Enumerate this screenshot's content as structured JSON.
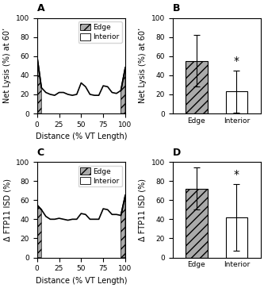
{
  "chart_data": [
    {
      "type": "line",
      "title": "A",
      "x_label": "Distance (% VT Length)",
      "y_label": "Net Lysis (%) at 60’",
      "xlim": [
        0,
        100
      ],
      "ylim": [
        0,
        100
      ],
      "xticks": [
        0,
        25,
        50,
        75,
        100
      ],
      "yticks": [
        0,
        20,
        40,
        60,
        80,
        100
      ],
      "legend": "upper right",
      "x": [
        0,
        5,
        10,
        15,
        20,
        25,
        30,
        35,
        40,
        45,
        50,
        55,
        60,
        65,
        70,
        75,
        80,
        85,
        90,
        95,
        100
      ],
      "series": [
        {
          "name": "Edge",
          "type": "area",
          "color": "#aaaaaa",
          "values": [
            60,
            27,
            null,
            null,
            null,
            null,
            null,
            null,
            null,
            null,
            null,
            null,
            null,
            null,
            null,
            null,
            null,
            null,
            null,
            24,
            48
          ]
        },
        {
          "name": "Interior",
          "type": "area",
          "color": "#ffffff",
          "values": [
            60,
            27,
            22,
            20,
            19,
            22,
            22,
            20,
            19,
            20,
            32,
            28,
            20,
            19,
            19,
            29,
            28,
            22,
            21,
            24,
            48
          ]
        }
      ]
    },
    {
      "type": "bar",
      "title": "B",
      "y_label": "Net Lysis (%) at 60’",
      "categories": [
        "Edge",
        "Interior"
      ],
      "values": [
        55,
        23
      ],
      "errors": [
        27,
        22
      ],
      "colors": [
        "#aaaaaa",
        "#ffffff"
      ],
      "ylim": [
        0,
        100
      ],
      "yticks": [
        0,
        20,
        40,
        60,
        80,
        100
      ],
      "annotations": [
        {
          "text": "*",
          "x": "Interior",
          "y": 49
        }
      ]
    },
    {
      "type": "line",
      "title": "C",
      "x_label": "Distance (% VT Length)",
      "y_label": "Δ FTP11 ISD (%)",
      "xlim": [
        0,
        100
      ],
      "ylim": [
        0,
        100
      ],
      "xticks": [
        0,
        25,
        50,
        75,
        100
      ],
      "yticks": [
        0,
        20,
        40,
        60,
        80,
        100
      ],
      "legend": "upper right",
      "x": [
        0,
        5,
        10,
        15,
        20,
        25,
        30,
        35,
        40,
        45,
        50,
        55,
        60,
        65,
        70,
        75,
        80,
        85,
        90,
        95,
        100
      ],
      "series": [
        {
          "name": "Edge",
          "type": "area",
          "color": "#aaaaaa",
          "values": [
            55,
            50,
            null,
            null,
            null,
            null,
            null,
            null,
            null,
            null,
            null,
            null,
            null,
            null,
            null,
            null,
            null,
            null,
            null,
            44,
            65
          ]
        },
        {
          "name": "Interior",
          "type": "area",
          "color": "#ffffff",
          "values": [
            55,
            50,
            43,
            40,
            40,
            41,
            40,
            39,
            40,
            40,
            46,
            45,
            40,
            40,
            40,
            51,
            50,
            45,
            45,
            44,
            65
          ]
        }
      ]
    },
    {
      "type": "bar",
      "title": "D",
      "y_label": "Δ FTP11 ISD (%)",
      "categories": [
        "Edge",
        "Interior"
      ],
      "values": [
        72,
        42
      ],
      "errors": [
        22,
        35
      ],
      "colors": [
        "#aaaaaa",
        "#ffffff"
      ],
      "ylim": [
        0,
        100
      ],
      "yticks": [
        0,
        20,
        40,
        60,
        80,
        100
      ],
      "annotations": [
        {
          "text": "*",
          "x": "Interior",
          "y": 81
        }
      ]
    }
  ]
}
